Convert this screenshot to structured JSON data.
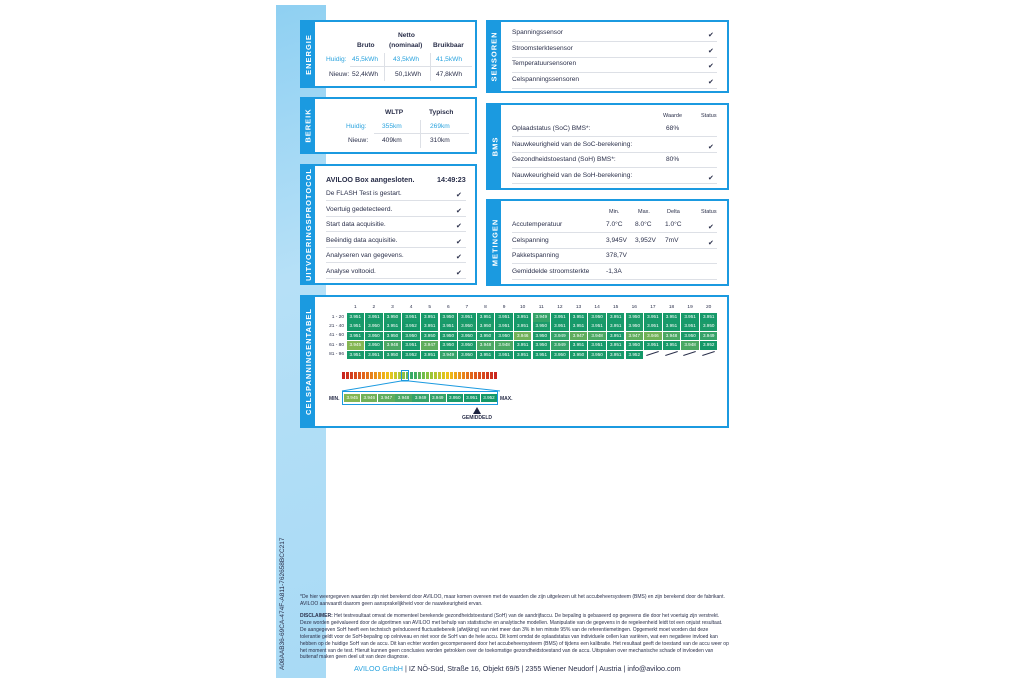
{
  "doc_id": "A08AAB36-69CA-474F-A811-762658BCC217",
  "energie": {
    "label": "ENERGIE",
    "cols": [
      "Bruto",
      "Netto\n(nominaal)",
      "Bruikbaar"
    ],
    "col2a": "Netto",
    "col2b": "(nominaal)",
    "rows": [
      {
        "label": "Huidig:",
        "values": [
          "45,5kWh",
          "43,5kWh",
          "41,5kWh"
        ]
      },
      {
        "label": "Nieuw:",
        "values": [
          "52,4kWh",
          "50,1kWh",
          "47,8kWh"
        ]
      }
    ]
  },
  "bereik": {
    "label": "BEREIK",
    "cols": [
      "WLTP",
      "Typisch"
    ],
    "rows": [
      {
        "label": "Huidig:",
        "values": [
          "355km",
          "269km"
        ]
      },
      {
        "label": "Nieuw:",
        "values": [
          "409km",
          "310km"
        ]
      }
    ]
  },
  "protocol": {
    "label": "UITVOERINGSPROTOCOL",
    "title": "AVILOO Box aangesloten.",
    "time": "14:49:23",
    "items": [
      "De FLASH Test is gestart.",
      "Voertuig gedetecteerd.",
      "Start data acquisitie.",
      "Beëindig data acquisitie.",
      "Analyseren van gegevens.",
      "Analyse voltooid."
    ]
  },
  "sensoren": {
    "label": "SENSOREN",
    "items": [
      "Spanningssensor",
      "Stroomsterktesensor",
      "Temperatuursensoren",
      "Celspanningssensoren"
    ]
  },
  "bms": {
    "label": "BMS",
    "col_value": "Waarde",
    "col_status": "Status",
    "rows": [
      {
        "label": "Oplaadstatus (SoC) BMS*:",
        "value": "68%",
        "ok": false
      },
      {
        "label": "Nauwkeurigheid van de SoC-berekening:",
        "value": "",
        "ok": true
      },
      {
        "label": "Gezondheidstoestand (SoH) BMS*:",
        "value": "80%",
        "ok": false
      },
      {
        "label": "Nauwkeurigheid van de SoH-berekening:",
        "value": "",
        "ok": true
      }
    ]
  },
  "metingen": {
    "label": "METINGEN",
    "cols": [
      "Min.",
      "Max.",
      "Delta",
      "Status"
    ],
    "rows": [
      {
        "label": "Accutemperatuur",
        "values": [
          "7.0°C",
          "8.0°C",
          "1.0°C"
        ],
        "ok": true
      },
      {
        "label": "Celspanning",
        "values": [
          "3,945V",
          "3,952V",
          "7mV"
        ],
        "ok": true
      },
      {
        "label": "Pakketspanning",
        "values": [
          "378,7V",
          "",
          ""
        ],
        "ok": false
      },
      {
        "label": "Gemiddelde stroomsterkte",
        "values": [
          "-1,3A",
          "",
          ""
        ],
        "ok": false
      }
    ]
  },
  "cells": {
    "label": "CELSPANNINGENTABEL",
    "col_headers": [
      "1",
      "2",
      "3",
      "4",
      "5",
      "6",
      "7",
      "8",
      "9",
      "10",
      "11",
      "12",
      "13",
      "14",
      "15",
      "16",
      "17",
      "18",
      "19",
      "20"
    ],
    "row_labels": [
      "1 - 20",
      "21 - 40",
      "41 - 60",
      "61 - 80",
      "81 - 96"
    ],
    "rows": [
      [
        "3.951",
        "3.951",
        "3.950",
        "3.951",
        "3.951",
        "3.950",
        "3.951",
        "3.951",
        "3.951",
        "3.951",
        "3.949",
        "3.951",
        "3.951",
        "3.950",
        "3.951",
        "3.950",
        "3.951",
        "3.951",
        "3.951",
        "3.951"
      ],
      [
        "3.951",
        "3.950",
        "3.951",
        "3.952",
        "3.951",
        "3.951",
        "3.950",
        "3.950",
        "3.951",
        "3.951",
        "3.950",
        "3.951",
        "3.951",
        "3.951",
        "3.951",
        "3.950",
        "3.951",
        "3.951",
        "3.951",
        "3.950"
      ],
      [
        "3.951",
        "3.950",
        "3.950",
        "3.950",
        "3.950",
        "3.950",
        "3.950",
        "3.950",
        "3.950",
        "3.946",
        "3.950",
        "3.949",
        "3.947",
        "3.948",
        "3.951",
        "3.947",
        "3.946",
        "3.948",
        "3.950",
        "3.949"
      ],
      [
        "3.945",
        "3.950",
        "3.948",
        "3.951",
        "3.947",
        "3.950",
        "3.950",
        "3.948",
        "3.948",
        "3.951",
        "3.950",
        "3.949",
        "3.951",
        "3.951",
        "3.951",
        "3.950",
        "3.951",
        "3.951",
        "3.948",
        "3.952"
      ],
      [
        "3.951",
        "3.951",
        "3.950",
        "3.952",
        "3.951",
        "3.949",
        "3.950",
        "3.951",
        "3.951",
        "3.951",
        "3.951",
        "3.950",
        "3.950",
        "3.950",
        "3.951",
        "3.952"
      ]
    ],
    "scale_values": [
      "3.945",
      "3.946",
      "3.947",
      "3.948",
      "3.949",
      "3.949",
      "3.950",
      "3.951",
      "3.952"
    ],
    "min_label": "MIN.",
    "max_label": "MAX.",
    "avg_label": "GEMIDDELD"
  },
  "footer": {
    "note": "*De hier weergegeven waarden zijn niet berekend door AVILOO, maar komen overeen met de waarden die zijn uitgelezen uit het accubeheersysteem (BMS) en zijn berekend door de fabrikant. AVILOO aanvaardt daarom geen aansprakelijkheid voor de nauwkeurigheid ervan.",
    "disclaimer_label": "DISCLAIMER:",
    "disclaimer": " Het testresultaat omvat de momenteel berekende gezondheidstoestand (SoH) van de aandrijfaccu. De bepaling is gebaseerd op gegevens die door het voertuig zijn verstrekt. Deze worden geëvalueerd door de algoritmen van AVILOO met behulp van statistische en analytische modellen. Manipulatie van de gegevens in de regeleenheid leidt tot een onjuist resultaat. De aangegeven SoH heeft een technisch geïnduceerd fluctuatiebereik (afwijking) van niet meer dan 3% in ten minste 95% van de referentiemetingen. Opgemerkt moet worden dat deze tolerantie geldt voor de SoH-bepaling op celniveau en niet voor de SoH van de hele accu. Dit komt omdat de oplaadstatus van individuele cellen kan variëren, wat een negatieve invloed kan hebben op de huidige SoH van de accu. Dit kan echter worden gecompenseerd door het accubeheersysteem (BMS) of tijdens een kalibratie. Het resultaat geeft de toestand van de accu weer op het moment van de test. Hieruit kunnen geen conclusies worden getrokken over de toekomstige gezondheidstoestand van de accu. Uitspraken over mechanische schade of invloeden van buitenaf maken geen deel uit van deze diagnose.",
    "company": "AVILOO GmbH",
    "address": " | IZ NÖ-Süd, Straße 16, Objekt 69/5 | 2355 Wiener Neudorf | Austria | info@aviloo.com"
  },
  "colors": {
    "accent": "#1b9ae0",
    "cell_green": "#179a6a"
  }
}
